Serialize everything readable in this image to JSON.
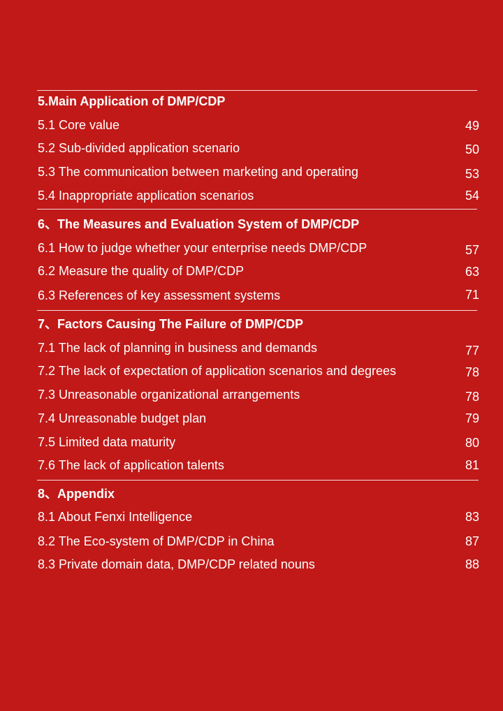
{
  "colors": {
    "background": "#c01918",
    "text": "#ffffff"
  },
  "sections": [
    {
      "heading": "5.Main Application of DMP/CDP",
      "items": [
        {
          "label": "5.1 Core value",
          "page": "49"
        },
        {
          "label": "5.2 Sub-divided application scenario",
          "page": "50"
        },
        {
          "label": "5.3 The communication between marketing and operating",
          "page": "53"
        },
        {
          "label": "5.4 Inappropriate application scenarios",
          "page": "54"
        }
      ]
    },
    {
      "heading": "6、The Measures and Evaluation System of DMP/CDP",
      "items": [
        {
          "label": "6.1 How to judge whether your enterprise needs DMP/CDP",
          "page": "57"
        },
        {
          "label": "6.2 Measure the quality of DMP/CDP",
          "page": "63"
        },
        {
          "label": "6.3 References of key assessment systems",
          "page": "71"
        }
      ]
    },
    {
      "heading": "7、Factors Causing The Failure of DMP/CDP",
      "items": [
        {
          "label": "7.1 The lack of planning in business and demands",
          "page": "77"
        },
        {
          "label": "7.2 The lack of expectation of application scenarios and degrees",
          "page": "78"
        },
        {
          "label": "7.3 Unreasonable organizational arrangements",
          "page": "78"
        },
        {
          "label": "7.4 Unreasonable budget plan",
          "page": "79"
        },
        {
          "label": "7.5 Limited data maturity",
          "page": "80"
        },
        {
          "label": "7.6 The lack of application talents",
          "page": "81"
        }
      ]
    },
    {
      "heading": "8、Appendix",
      "items": [
        {
          "label": "8.1 About Fenxi Intelligence",
          "page": "83"
        },
        {
          "label": "8.2 The Eco-system of DMP/CDP in China",
          "page": "87"
        },
        {
          "label": "8.3  Private domain data, DMP/CDP related nouns",
          "page": "88"
        }
      ]
    }
  ]
}
